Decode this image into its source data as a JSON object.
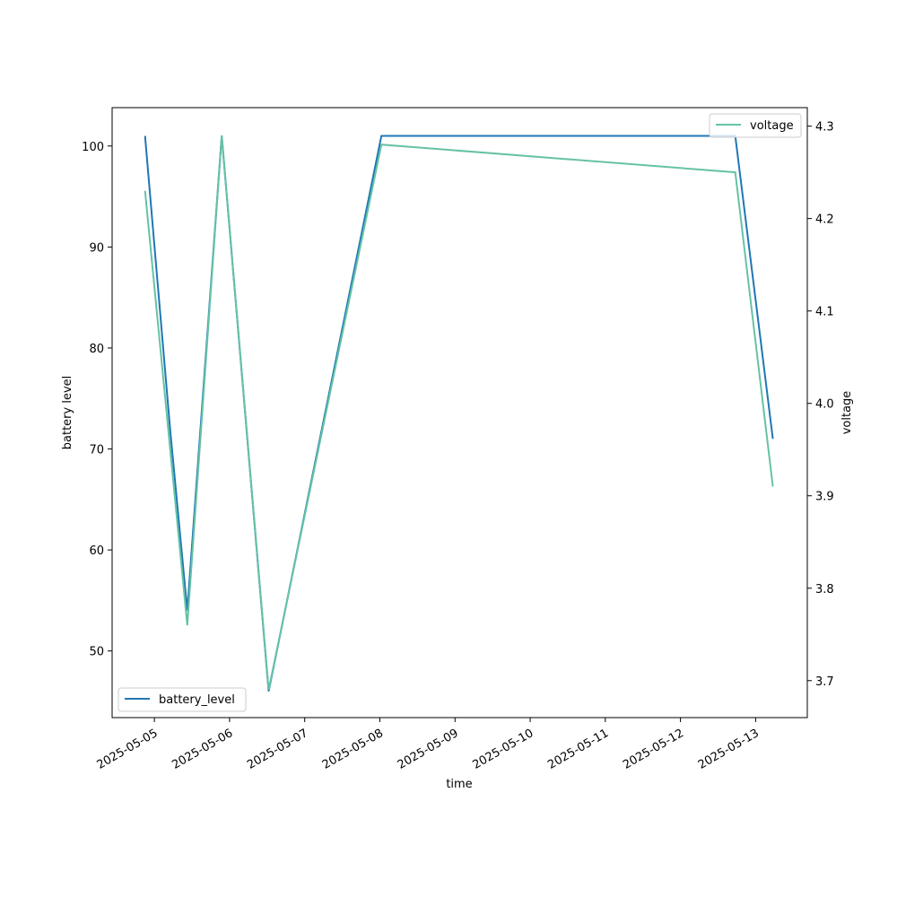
{
  "chart_data": {
    "type": "line",
    "xlabel": "time",
    "ylabel_left": "battery level",
    "ylabel_right": "voltage",
    "x_ticks": [
      "2025-05-05",
      "2025-05-06",
      "2025-05-07",
      "2025-05-08",
      "2025-05-09",
      "2025-05-10",
      "2025-05-11",
      "2025-05-12",
      "2025-05-13"
    ],
    "xlim": [
      "2025-05-04T10:30",
      "2025-05-13T16:30"
    ],
    "ylim_left": [
      43.4,
      103.8
    ],
    "ylim_right": [
      3.66,
      4.32
    ],
    "y_ticks_left": [
      50,
      60,
      70,
      80,
      90,
      100
    ],
    "y_ticks_right": [
      3.7,
      3.8,
      3.9,
      4.0,
      4.1,
      4.2,
      4.3
    ],
    "series": [
      {
        "name": "battery_level",
        "axis": "left",
        "color": "#1f77b4",
        "legend_position": "lower-left",
        "points": [
          {
            "x": "2025-05-04T21:00",
            "y": 101
          },
          {
            "x": "2025-05-05T05:00",
            "y": 72
          },
          {
            "x": "2025-05-05T10:30",
            "y": 54
          },
          {
            "x": "2025-05-05T21:30",
            "y": 101
          },
          {
            "x": "2025-05-06T12:30",
            "y": 46
          },
          {
            "x": "2025-05-08T00:30",
            "y": 101
          },
          {
            "x": "2025-05-12T17:30",
            "y": 101
          },
          {
            "x": "2025-05-13T05:30",
            "y": 71
          }
        ]
      },
      {
        "name": "voltage",
        "axis": "right",
        "color": "#66c2a5",
        "legend_position": "upper-right",
        "points": [
          {
            "x": "2025-05-04T21:00",
            "y": 4.23
          },
          {
            "x": "2025-05-05T10:30",
            "y": 3.76
          },
          {
            "x": "2025-05-05T21:30",
            "y": 4.29
          },
          {
            "x": "2025-05-06T12:30",
            "y": 3.69
          },
          {
            "x": "2025-05-08T00:30",
            "y": 4.28
          },
          {
            "x": "2025-05-12T17:30",
            "y": 4.25
          },
          {
            "x": "2025-05-13T05:30",
            "y": 3.91
          }
        ]
      }
    ]
  }
}
